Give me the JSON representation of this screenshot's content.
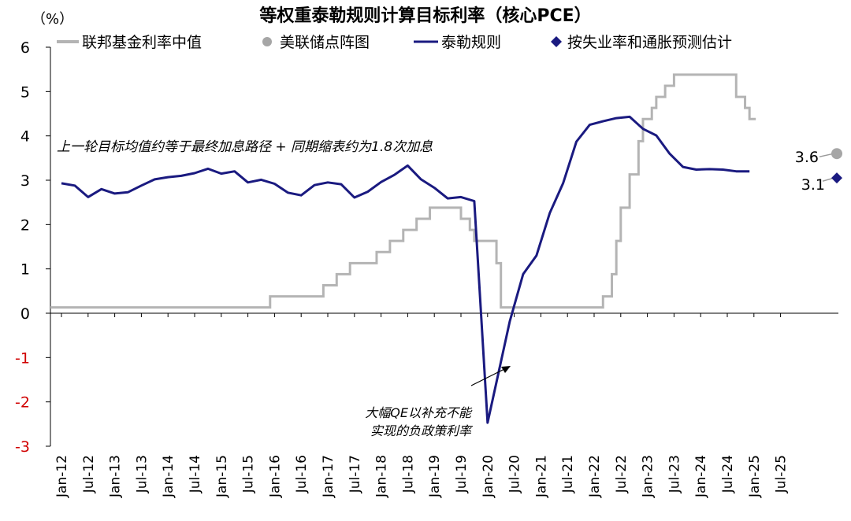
{
  "chart_data": {
    "type": "line",
    "title": "等权重泰勒规则计算目标利率（核心PCE）",
    "ylabel": "（%）",
    "ylim": [
      -3,
      6
    ],
    "yticks": [
      "6",
      "5",
      "4",
      "3",
      "2",
      "1",
      "0",
      "-1",
      "-2",
      "-3"
    ],
    "grid": false,
    "legend": "top",
    "x_ticks": [
      "Jan-12",
      "Jul-12",
      "Jan-13",
      "Jul-13",
      "Jan-14",
      "Jul-14",
      "Jan-15",
      "Jul-15",
      "Jan-16",
      "Jul-16",
      "Jan-17",
      "Jul-17",
      "Jan-18",
      "Jul-18",
      "Jan-19",
      "Jul-19",
      "Jan-20",
      "Jul-20",
      "Jan-21",
      "Jul-21",
      "Jan-22",
      "Jul-22",
      "Jan-23",
      "Jul-23",
      "Jan-24",
      "Jul-24",
      "Jan-25",
      "Jul-25"
    ],
    "colors": {
      "fed_funds": "#b4b4b4",
      "dot_plot": "#a6a6a6",
      "taylor": "#1a1a80",
      "estimate": "#1a1a80",
      "negative_tick": "#d00000"
    },
    "series": [
      {
        "name": "联邦基金利率中值",
        "style": "step",
        "x": [
          "2012-01",
          "2015-12",
          "2016-12",
          "2017-03",
          "2017-06",
          "2017-12",
          "2018-03",
          "2018-06",
          "2018-09",
          "2018-12",
          "2019-07",
          "2019-09",
          "2019-10",
          "2020-03",
          "2020-04",
          "2022-03",
          "2022-05",
          "2022-06",
          "2022-07",
          "2022-09",
          "2022-11",
          "2022-12",
          "2023-02",
          "2023-03",
          "2023-05",
          "2023-07",
          "2024-09",
          "2024-11",
          "2024-12"
        ],
        "values": [
          0.13,
          0.38,
          0.63,
          0.88,
          1.13,
          1.38,
          1.63,
          1.88,
          2.13,
          2.38,
          2.13,
          1.88,
          1.63,
          1.13,
          0.13,
          0.38,
          0.88,
          1.63,
          2.38,
          3.13,
          3.88,
          4.38,
          4.63,
          4.88,
          5.13,
          5.38,
          4.88,
          4.63,
          4.38
        ]
      },
      {
        "name": "泰勒规则",
        "x": [
          "2012-01",
          "2012-04",
          "2012-07",
          "2012-10",
          "2013-01",
          "2013-04",
          "2013-07",
          "2013-10",
          "2014-01",
          "2014-04",
          "2014-07",
          "2014-10",
          "2015-01",
          "2015-04",
          "2015-07",
          "2015-10",
          "2016-01",
          "2016-04",
          "2016-07",
          "2016-10",
          "2017-01",
          "2017-04",
          "2017-07",
          "2017-10",
          "2018-01",
          "2018-04",
          "2018-07",
          "2018-10",
          "2019-01",
          "2019-04",
          "2019-07",
          "2019-10",
          "2020-01",
          "2020-06",
          "2020-09",
          "2020-12",
          "2021-03",
          "2021-06",
          "2021-09",
          "2021-12",
          "2022-03",
          "2022-06",
          "2022-09",
          "2022-12",
          "2023-03",
          "2023-06",
          "2023-09",
          "2023-12",
          "2024-03",
          "2024-06",
          "2024-09",
          "2024-12"
        ],
        "values": [
          2.93,
          2.88,
          2.62,
          2.8,
          2.7,
          2.73,
          2.88,
          3.02,
          3.07,
          3.1,
          3.16,
          3.26,
          3.15,
          3.2,
          2.95,
          3.01,
          2.92,
          2.72,
          2.66,
          2.89,
          2.95,
          2.91,
          2.61,
          2.74,
          2.96,
          3.12,
          3.33,
          3.02,
          2.83,
          2.59,
          2.62,
          2.53,
          -2.47,
          -0.18,
          0.88,
          1.3,
          2.26,
          2.93,
          3.87,
          4.25,
          4.33,
          4.4,
          4.43,
          4.16,
          4.01,
          3.6,
          3.3,
          3.24,
          3.25,
          3.24,
          3.2,
          3.2
        ]
      }
    ],
    "points": [
      {
        "name": "美联储点阵图",
        "x": "2025-12",
        "value": 3.6,
        "label": "3.6"
      },
      {
        "name": "按失业率和通胀预测估计",
        "x": "2025-12",
        "value": 3.05,
        "label": "3.1"
      }
    ],
    "annotations": [
      {
        "text": "上一轮目标均值约等于最终加息路径 + 同期缩表约为1.8次加息"
      },
      {
        "text": "大幅QE以补充不能\n实现的负政策利率"
      }
    ]
  }
}
